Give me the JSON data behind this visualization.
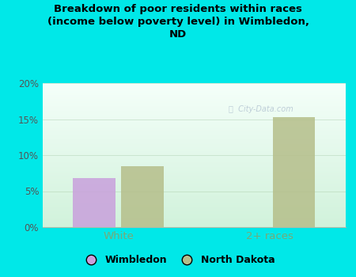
{
  "title": "Breakdown of poor residents within races\n(income below poverty level) in Wimbledon,\nND",
  "categories": [
    "White",
    "2+ races"
  ],
  "wimbledon_values": [
    6.8,
    0
  ],
  "nd_values": [
    8.5,
    15.3
  ],
  "wimbledon_color": "#c9a0dc",
  "nd_color": "#b5be8a",
  "background_color": "#00e8e8",
  "ylabel_ticks": [
    0,
    5,
    10,
    15,
    20
  ],
  "ylabel_labels": [
    "0%",
    "5%",
    "10%",
    "15%",
    "20%"
  ],
  "ylim": [
    0,
    20
  ],
  "bar_width": 0.28,
  "legend_labels": [
    "Wimbledon",
    "North Dakota"
  ],
  "x_label_color": "#77aa77",
  "watermark": "City-Data.com"
}
